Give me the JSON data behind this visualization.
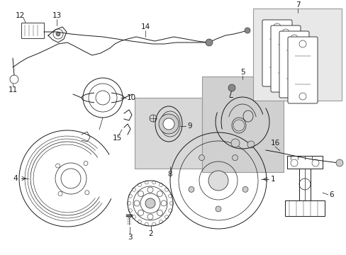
{
  "bg_color": "#ffffff",
  "line_color": "#1a1a1a",
  "box_fill_7": "#e8e8e8",
  "box_fill_5": "#d0d0d0",
  "box_fill_8": "#d8d8d8",
  "label_fontsize": 7.5,
  "figsize": [
    4.89,
    3.6
  ],
  "dpi": 100
}
